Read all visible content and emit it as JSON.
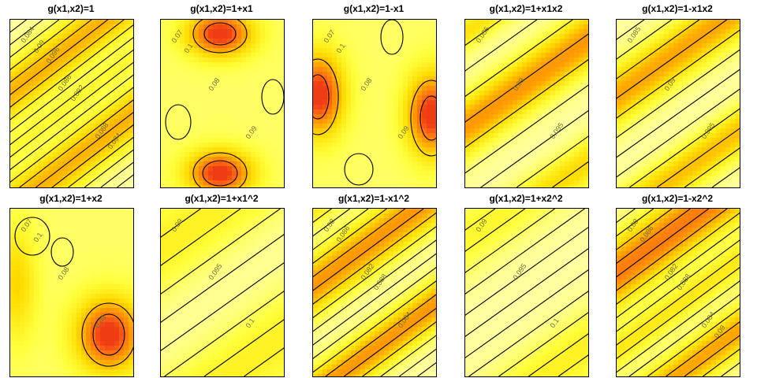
{
  "chart_data": [
    {
      "type": "heatmap",
      "title": "g(x1,x2)=1",
      "pattern": "diagonal",
      "labels": [
        "0.084",
        "0.086",
        "0.088",
        "0.09",
        "0.092",
        "0.094",
        "0.096"
      ]
    },
    {
      "type": "heatmap",
      "title": "g(x1,x2)=1+x1",
      "pattern": "blobs",
      "labels": [
        "0.07",
        "0.08",
        "0.09",
        "0.1"
      ]
    },
    {
      "type": "heatmap",
      "title": "g(x1,x2)=1-x1",
      "pattern": "blobs",
      "labels": [
        "0.07",
        "0.08",
        "0.09",
        "0.1"
      ]
    },
    {
      "type": "heatmap",
      "title": "g(x1,x2)=1+x1x2",
      "pattern": "diagonal",
      "labels": [
        "0.085",
        "0.09",
        "0.095"
      ]
    },
    {
      "type": "heatmap",
      "title": "g(x1,x2)=1-x1x2",
      "pattern": "diagonal",
      "labels": [
        "0.085",
        "0.09",
        "0.095"
      ]
    },
    {
      "type": "heatmap",
      "title": "g(x1,x2)=1+x2",
      "pattern": "blobs",
      "labels": [
        "0.07",
        "0.08",
        "0.09",
        "0.1"
      ]
    },
    {
      "type": "heatmap",
      "title": "g(x1,x2)=1+x1^2",
      "pattern": "diagonal",
      "labels": [
        "0.09",
        "0.095",
        "0.1"
      ]
    },
    {
      "type": "heatmap",
      "title": "g(x1,x2)=1-x1^2",
      "pattern": "diagonal",
      "labels": [
        "0.08",
        "0.082",
        "0.084",
        "0.086",
        "0.088"
      ]
    },
    {
      "type": "heatmap",
      "title": "g(x1,x2)=1+x2^2",
      "pattern": "diagonal",
      "labels": [
        "0.09",
        "0.095",
        "0.1"
      ]
    },
    {
      "type": "heatmap",
      "title": "g(x1,x2)=1-x2^2",
      "pattern": "diagonal",
      "labels": [
        "0.08",
        "0.082",
        "0.084",
        "0.086",
        "0.088",
        "0.09"
      ]
    }
  ]
}
